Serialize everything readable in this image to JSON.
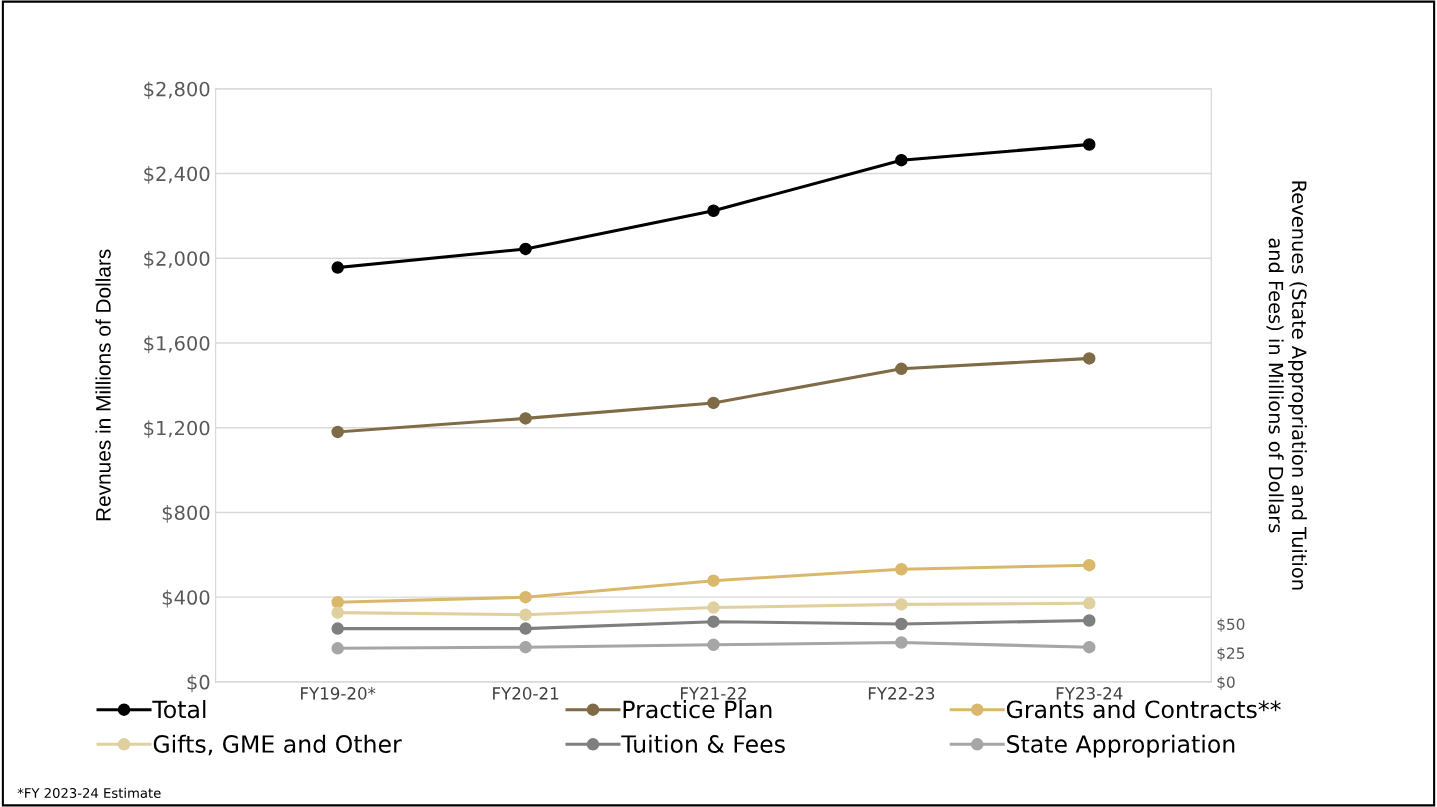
{
  "chart_data": {
    "type": "line",
    "categories": [
      "FY19-20*",
      "FY20-21",
      "FY21-22",
      "FY22-23",
      "FY23-24"
    ],
    "ylabel": "Revnues in Millions of Dollars",
    "y2label": "Revenues (State Appropriation and Tuition\nand Fees) in Millions of Dollars",
    "ylim": [
      0,
      2800
    ],
    "yticks": [
      {
        "value": 0,
        "label": "$0"
      },
      {
        "value": 400,
        "label": "$400"
      },
      {
        "value": 800,
        "label": "$800"
      },
      {
        "value": 1200,
        "label": "$1,200"
      },
      {
        "value": 1600,
        "label": "$1,600"
      },
      {
        "value": 2000,
        "label": "$2,000"
      },
      {
        "value": 2400,
        "label": "$2,400"
      },
      {
        "value": 2800,
        "label": "$2,800"
      }
    ],
    "y2lim": [
      0,
      512
    ],
    "y2ticks": [
      {
        "value": 0,
        "label": "$0"
      },
      {
        "value": 25,
        "label": "$25"
      },
      {
        "value": 50,
        "label": "$50"
      }
    ],
    "grid": "y",
    "marker": "circle",
    "line_style": "solid",
    "legend": "bottom",
    "series": [
      {
        "name": "Total",
        "color": "#000000",
        "values": [
          1956,
          2044,
          2224,
          2463,
          2537
        ]
      },
      {
        "name": "Practice Plan",
        "color": "#7f6b46",
        "values": [
          1180,
          1244,
          1317,
          1478,
          1527
        ]
      },
      {
        "name": "Grants and Contracts**",
        "color": "#d9b86c",
        "values": [
          376,
          400,
          478,
          532,
          551
        ]
      },
      {
        "name": "Gifts, GME and Other",
        "color": "#e0d0a0",
        "values": [
          327,
          317,
          351,
          366,
          371
        ]
      },
      {
        "name": "Tuition & Fees",
        "color": "#7f7f7f",
        "axis": "y2",
        "values": [
          46,
          46,
          52,
          50,
          53
        ]
      },
      {
        "name": "State Appropriation",
        "color": "#a6a6a6",
        "axis": "y2",
        "values": [
          29,
          30,
          32,
          34,
          30
        ]
      }
    ],
    "annotations": [
      "*FY 2023-24 Estimate"
    ]
  }
}
